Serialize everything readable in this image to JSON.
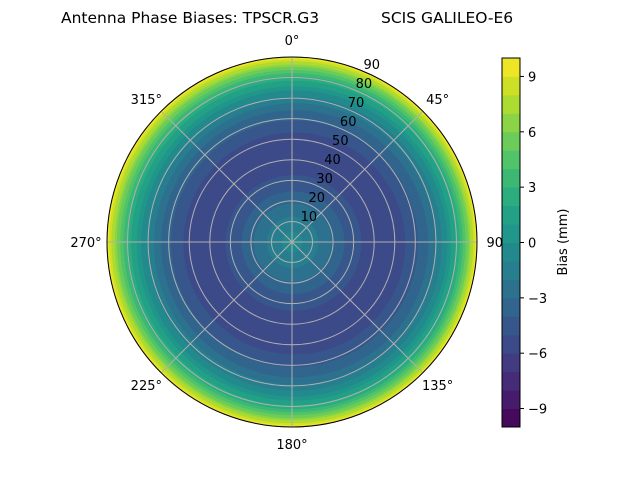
{
  "chart_data": {
    "type": "polar-contour",
    "title_left": "Antenna Phase Biases: TPSCR.G3",
    "title_right": "SCIS GALILEO-E6",
    "angle_ticks": [
      {
        "deg": 0,
        "label": "0°"
      },
      {
        "deg": 45,
        "label": "45°"
      },
      {
        "deg": 90,
        "label": "90°"
      },
      {
        "deg": 135,
        "label": "135°"
      },
      {
        "deg": 180,
        "label": "180°"
      },
      {
        "deg": 225,
        "label": "225°"
      },
      {
        "deg": 270,
        "label": "270°"
      },
      {
        "deg": 315,
        "label": "315°"
      }
    ],
    "radial_ticks": [
      10,
      20,
      30,
      40,
      50,
      60,
      70,
      80,
      90
    ],
    "radial_label_angle_deg": 22.5,
    "rlim": [
      0,
      90
    ],
    "grid": true,
    "radial_profile": {
      "zenith_deg": [
        0,
        5,
        10,
        15,
        20,
        25,
        30,
        35,
        40,
        45,
        50,
        55,
        60,
        65,
        70,
        75,
        80,
        83,
        86,
        88,
        90
      ],
      "bias_mm": [
        -0.8,
        -1.0,
        -1.6,
        -2.4,
        -3.2,
        -4.0,
        -4.7,
        -5.2,
        -5.5,
        -5.6,
        -5.4,
        -4.9,
        -4.0,
        -3.0,
        -1.6,
        0.2,
        2.5,
        4.3,
        6.5,
        8.2,
        9.8
      ]
    },
    "colorbar": {
      "label": "Bias (mm)",
      "range": [
        -10,
        10
      ],
      "level_step": 1,
      "ticks": [
        -9,
        -6,
        -3,
        0,
        3,
        6,
        9
      ],
      "tick_labels": [
        "−9",
        "−6",
        "−3",
        "0",
        "3",
        "6",
        "9"
      ],
      "colormap": "viridis"
    }
  }
}
